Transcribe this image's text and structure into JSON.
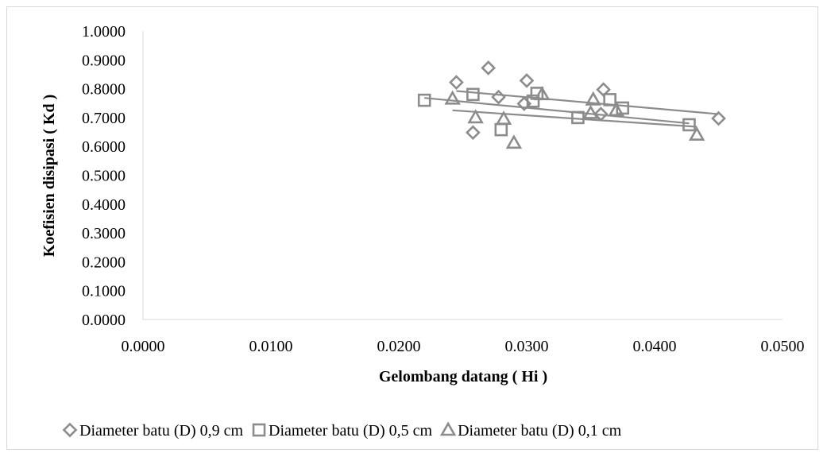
{
  "chart_data": {
    "type": "scatter",
    "title": "",
    "xlabel": "Gelombang datang ( Hi )",
    "ylabel": "Koefisien disipasi ( Kd )",
    "xlim": [
      0,
      0.05
    ],
    "ylim": [
      0,
      1
    ],
    "x_ticks": [
      "0.0000",
      "0.0100",
      "0.0200",
      "0.0300",
      "0.0400",
      "0.0500"
    ],
    "y_ticks": [
      "0.0000",
      "0.1000",
      "0.2000",
      "0.3000",
      "0.4000",
      "0.5000",
      "0.6000",
      "0.7000",
      "0.8000",
      "0.9000",
      "1.0000"
    ],
    "grid": false,
    "legend_position": "bottom",
    "series": [
      {
        "name": "Diameter batu (D) 0,9 cm",
        "marker": "diamond",
        "color": "#8c8c8c",
        "points": [
          [
            0.0245,
            0.822
          ],
          [
            0.0258,
            0.648
          ],
          [
            0.027,
            0.872
          ],
          [
            0.0278,
            0.771
          ],
          [
            0.0298,
            0.748
          ],
          [
            0.03,
            0.828
          ],
          [
            0.0358,
            0.712
          ],
          [
            0.036,
            0.797
          ],
          [
            0.045,
            0.697
          ]
        ],
        "trendline": [
          [
            0.0245,
            0.792
          ],
          [
            0.045,
            0.712
          ]
        ]
      },
      {
        "name": "Diameter batu (D) 0,5 cm",
        "marker": "square",
        "color": "#8c8c8c",
        "points": [
          [
            0.022,
            0.76
          ],
          [
            0.0258,
            0.78
          ],
          [
            0.028,
            0.658
          ],
          [
            0.0305,
            0.757
          ],
          [
            0.0308,
            0.784
          ],
          [
            0.034,
            0.7
          ],
          [
            0.0365,
            0.762
          ],
          [
            0.0375,
            0.733
          ],
          [
            0.0427,
            0.675
          ]
        ],
        "trendline": [
          [
            0.022,
            0.768
          ],
          [
            0.0427,
            0.68
          ]
        ]
      },
      {
        "name": "Diameter batu (D) 0,1 cm",
        "marker": "triangle",
        "color": "#8c8c8c",
        "points": [
          [
            0.0242,
            0.765
          ],
          [
            0.026,
            0.7
          ],
          [
            0.0282,
            0.695
          ],
          [
            0.029,
            0.612
          ],
          [
            0.0312,
            0.78
          ],
          [
            0.035,
            0.715
          ],
          [
            0.0352,
            0.762
          ],
          [
            0.037,
            0.725
          ],
          [
            0.0433,
            0.64
          ]
        ],
        "trendline": [
          [
            0.0242,
            0.725
          ],
          [
            0.0433,
            0.668
          ]
        ]
      }
    ]
  }
}
